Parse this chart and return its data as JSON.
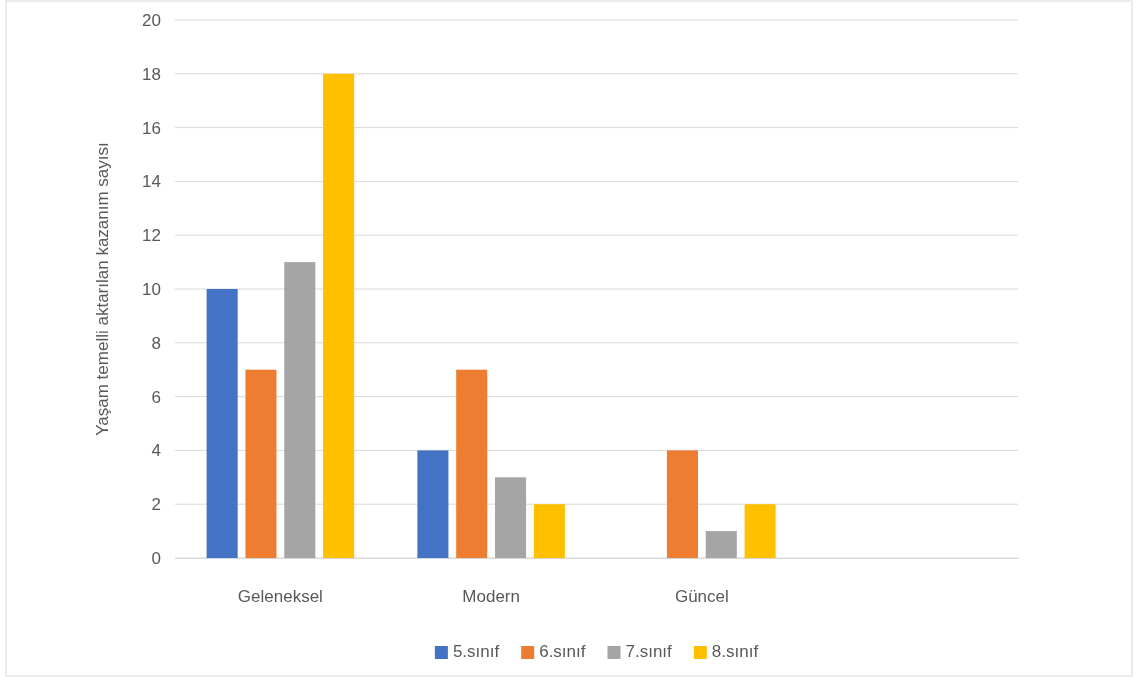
{
  "chart_data": {
    "type": "bar",
    "ylabel": "Yaşam temelli aktarılan kazanım sayısı",
    "categories": [
      "Geleneksel",
      "Modern",
      "Güncel",
      null
    ],
    "series": [
      {
        "name": "5.sınıf",
        "color": "#4472c4",
        "values": [
          10,
          4,
          0,
          null
        ]
      },
      {
        "name": "6.sınıf",
        "color": "#ed7d31",
        "values": [
          7,
          7,
          4,
          null
        ]
      },
      {
        "name": "7.sınıf",
        "color": "#a5a5a5",
        "values": [
          11,
          3,
          1,
          null
        ]
      },
      {
        "name": "8.sınıf",
        "color": "#ffc000",
        "values": [
          18,
          2,
          2,
          null
        ]
      }
    ],
    "ylim": [
      0,
      20
    ],
    "yticks": [
      0,
      2,
      4,
      6,
      8,
      10,
      12,
      14,
      16,
      18,
      20
    ],
    "grid": "y",
    "legend": "bottom"
  }
}
